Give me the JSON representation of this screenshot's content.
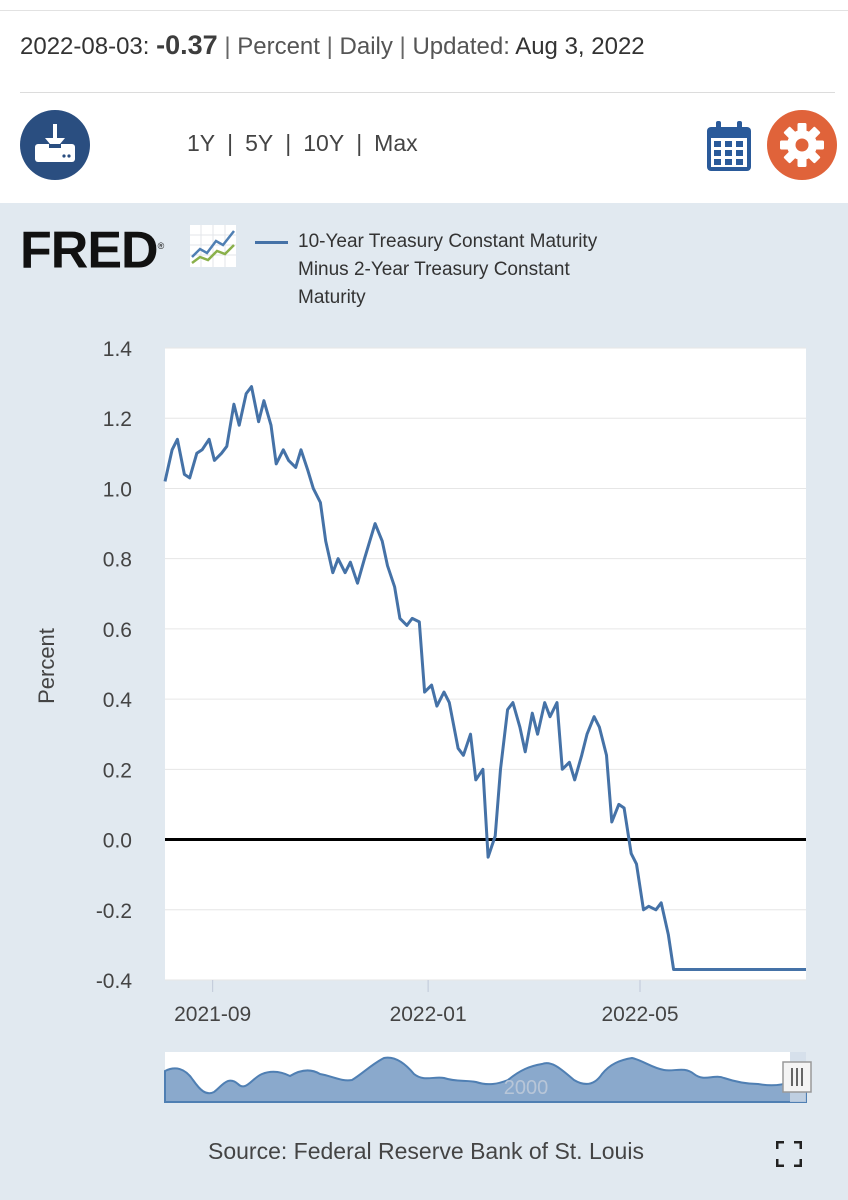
{
  "header": {
    "date": "2022-08-03:",
    "value": "-0.37",
    "units": "Percent",
    "frequency": "Daily",
    "updated_label": "Updated:",
    "updated_date": "Aug 3, 2022"
  },
  "toolbar": {
    "ranges": [
      "1Y",
      "5Y",
      "10Y",
      "Max"
    ],
    "download_icon": "download-icon",
    "calendar_icon": "calendar-icon",
    "settings_icon": "gear-icon"
  },
  "logo": {
    "text": "FRED",
    "registered": "®"
  },
  "legend": {
    "series_name": "10-Year Treasury Constant Maturity Minus 2-Year Treasury Constant Maturity",
    "color": "#4572a7"
  },
  "footer": {
    "source": "Source: Federal Reserve Bank of St. Louis",
    "fullscreen_icon": "fullscreen-icon"
  },
  "colors": {
    "series": "#4572a7",
    "download_button": "#2a4e80",
    "settings_button": "#e0633a",
    "panel": "#e1e9f0"
  },
  "chart_data": {
    "type": "line",
    "title": "10-Year Treasury Constant Maturity Minus 2-Year Treasury Constant Maturity",
    "xlabel": "",
    "ylabel": "Percent",
    "ylim": [
      -0.4,
      1.4
    ],
    "yticks": [
      "1.4",
      "1.2",
      "1.0",
      "0.8",
      "0.6",
      "0.4",
      "0.2",
      "0.0",
      "-0.2",
      "-0.4"
    ],
    "xticks": [
      {
        "label": "2021-09",
        "x": "2021-09-01"
      },
      {
        "label": "2022-01",
        "x": "2022-01-01"
      },
      {
        "label": "2022-05",
        "x": "2022-05-01"
      }
    ],
    "xlim": [
      "2021-08-05",
      "2022-08-03"
    ],
    "reference_line": 0.0,
    "grid": true,
    "series": [
      {
        "name": "10-Year Treasury Constant Maturity Minus 2-Year Treasury Constant Maturity",
        "x": [
          "2021-08-05",
          "2021-08-09",
          "2021-08-12",
          "2021-08-16",
          "2021-08-19",
          "2021-08-23",
          "2021-08-26",
          "2021-08-30",
          "2021-09-02",
          "2021-09-06",
          "2021-09-09",
          "2021-09-13",
          "2021-09-16",
          "2021-09-20",
          "2021-09-23",
          "2021-09-27",
          "2021-09-30",
          "2021-10-04",
          "2021-10-07",
          "2021-10-11",
          "2021-10-14",
          "2021-10-18",
          "2021-10-21",
          "2021-10-25",
          "2021-10-28",
          "2021-11-01",
          "2021-11-04",
          "2021-11-08",
          "2021-11-11",
          "2021-11-15",
          "2021-11-18",
          "2021-11-22",
          "2021-11-26",
          "2021-11-29",
          "2021-12-02",
          "2021-12-06",
          "2021-12-09",
          "2021-12-13",
          "2021-12-16",
          "2021-12-20",
          "2021-12-23",
          "2021-12-27",
          "2021-12-30",
          "2022-01-03",
          "2022-01-06",
          "2022-01-10",
          "2022-01-13",
          "2022-01-18",
          "2022-01-21",
          "2022-01-25",
          "2022-01-28",
          "2022-02-01",
          "2022-02-04",
          "2022-02-08",
          "2022-02-11",
          "2022-02-15",
          "2022-02-18",
          "2022-02-22",
          "2022-02-25",
          "2022-03-01",
          "2022-03-04",
          "2022-03-08",
          "2022-03-11",
          "2022-03-15",
          "2022-03-18",
          "2022-03-22",
          "2022-03-25",
          "2022-03-29",
          "2022-04-01",
          "2022-04-05",
          "2022-04-08",
          "2022-04-12",
          "2022-04-15",
          "2022-04-19",
          "2022-04-22",
          "2022-04-26",
          "2022-04-29",
          "2022-05-03",
          "2022-05-06",
          "2022-05-10",
          "2022-05-13",
          "2022-05-17",
          "2022-05-20",
          "2022-05-24",
          "2022-05-27",
          "2022-05-31",
          "2022-06-03",
          "2022-06-07",
          "2022-06-10",
          "2022-06-14",
          "2022-06-17",
          "2022-06-21",
          "2022-06-24",
          "2022-06-28",
          "2022-07-01",
          "2022-07-05",
          "2022-07-08",
          "2022-07-12",
          "2022-07-15",
          "2022-07-19",
          "2022-07-22",
          "2022-07-26",
          "2022-07-29",
          "2022-08-03"
        ],
        "values": [
          1.02,
          1.11,
          1.14,
          1.04,
          1.03,
          1.1,
          1.11,
          1.14,
          1.08,
          1.1,
          1.12,
          1.24,
          1.18,
          1.27,
          1.29,
          1.19,
          1.25,
          1.18,
          1.07,
          1.11,
          1.08,
          1.06,
          1.11,
          1.05,
          1.0,
          0.96,
          0.85,
          0.76,
          0.8,
          0.76,
          0.79,
          0.73,
          0.8,
          0.85,
          0.9,
          0.85,
          0.78,
          0.72,
          0.63,
          0.61,
          0.63,
          0.62,
          0.42,
          0.44,
          0.38,
          0.42,
          0.39,
          0.26,
          0.24,
          0.3,
          0.17,
          0.2,
          -0.05,
          0.01,
          0.2,
          0.37,
          0.39,
          0.32,
          0.25,
          0.36,
          0.3,
          0.39,
          0.35,
          0.39,
          0.2,
          0.22,
          0.17,
          0.24,
          0.3,
          0.35,
          0.32,
          0.24,
          0.05,
          0.1,
          0.09,
          -0.04,
          -0.07,
          -0.2,
          -0.19,
          -0.2,
          -0.18,
          -0.27,
          -0.37,
          -0.37,
          -0.37,
          -0.37,
          -0.37,
          -0.37,
          -0.37,
          -0.37,
          -0.37,
          -0.37,
          -0.37,
          -0.37,
          -0.37,
          -0.37,
          -0.37,
          -0.37,
          -0.37,
          -0.37,
          -0.37,
          -0.37,
          -0.37,
          -0.37
        ]
      }
    ],
    "navigator": {
      "label": "2000"
    }
  }
}
